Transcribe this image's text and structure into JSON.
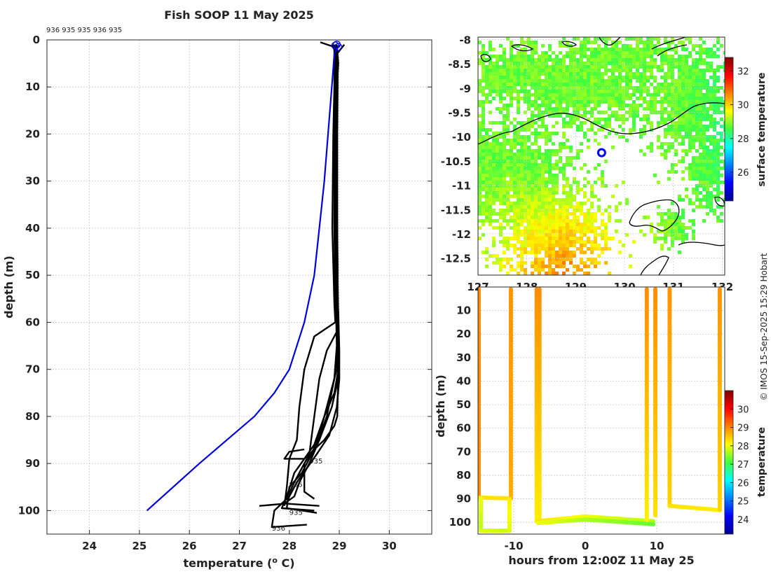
{
  "chart_data": [
    {
      "type": "line",
      "title": "Fish SOOP 11 May 2025",
      "xlabel": "temperature (",
      "xlabel_sup": "o",
      "xlabel_suffix": " C)",
      "ylabel": "depth (m)",
      "xlim": [
        23.15,
        30.85
      ],
      "ylim": [
        105,
        0
      ],
      "x_ticks": [
        24,
        25,
        26,
        27,
        28,
        29,
        30
      ],
      "y_ticks": [
        0,
        10,
        20,
        30,
        40,
        50,
        60,
        70,
        80,
        90,
        100
      ],
      "top_labels": "936 935 935 936 935",
      "depth_annotations": [
        {
          "text": "935",
          "temperature": 28.4,
          "depth": 89.5
        },
        {
          "text": "935",
          "temperature": 28.0,
          "depth": 94.5
        },
        {
          "text": "935",
          "temperature": 28.0,
          "depth": 100.5
        },
        {
          "text": "936",
          "temperature": 27.65,
          "depth": 103.8
        }
      ],
      "climatology": {
        "name": "climatology",
        "color": "#0000dd",
        "points": [
          [
            29.0,
            1
          ],
          [
            28.9,
            3
          ],
          [
            28.85,
            10
          ],
          [
            28.7,
            30
          ],
          [
            28.6,
            40
          ],
          [
            28.5,
            50
          ],
          [
            28.3,
            60
          ],
          [
            28.0,
            70
          ],
          [
            27.7,
            75
          ],
          [
            27.3,
            80
          ],
          [
            26.2,
            90
          ],
          [
            25.15,
            100
          ]
        ]
      },
      "profiles": [
        {
          "name": "profile-1",
          "points": [
            [
              28.62,
              0.5
            ],
            [
              28.9,
              1.5
            ],
            [
              28.9,
              10
            ],
            [
              28.88,
              20
            ],
            [
              28.86,
              40
            ],
            [
              28.9,
              56
            ],
            [
              28.92,
              60
            ],
            [
              28.5,
              63
            ],
            [
              28.3,
              70
            ],
            [
              28.2,
              78
            ],
            [
              28.15,
              85
            ],
            [
              28.0,
              89
            ],
            [
              27.95,
              95
            ],
            [
              27.9,
              99
            ]
          ]
        },
        {
          "name": "profile-2",
          "points": [
            [
              29.1,
              1
            ],
            [
              28.95,
              3
            ],
            [
              28.92,
              10
            ],
            [
              28.9,
              20
            ],
            [
              28.9,
              40
            ],
            [
              28.92,
              56
            ],
            [
              28.95,
              62
            ],
            [
              28.75,
              66
            ],
            [
              28.6,
              72
            ],
            [
              28.5,
              80
            ],
            [
              28.4,
              88
            ],
            [
              28.3,
              90
            ],
            [
              28.3,
              96
            ],
            [
              28.5,
              97.5
            ]
          ]
        },
        {
          "name": "profile-3",
          "points": [
            [
              28.85,
              1
            ],
            [
              28.95,
              3
            ],
            [
              28.95,
              10
            ],
            [
              28.93,
              30
            ],
            [
              28.95,
              50
            ],
            [
              28.97,
              60
            ],
            [
              28.98,
              70
            ],
            [
              28.9,
              75
            ],
            [
              28.7,
              80
            ],
            [
              28.5,
              86
            ],
            [
              28.3,
              89
            ],
            [
              28.1,
              92
            ],
            [
              27.98,
              96
            ],
            [
              27.85,
              99.5
            ],
            [
              28.5,
              100
            ]
          ]
        },
        {
          "name": "profile-4",
          "points": [
            [
              28.95,
              1
            ],
            [
              28.98,
              5
            ],
            [
              28.95,
              10
            ],
            [
              28.95,
              30
            ],
            [
              28.97,
              55
            ],
            [
              28.98,
              65
            ],
            [
              28.98,
              72
            ],
            [
              28.85,
              78
            ],
            [
              28.6,
              85
            ],
            [
              28.4,
              90
            ],
            [
              28.2,
              94
            ],
            [
              28.1,
              97
            ],
            [
              27.9,
              98.5
            ],
            [
              28.6,
              99
            ]
          ]
        },
        {
          "name": "profile-5",
          "points": [
            [
              28.9,
              1
            ],
            [
              28.92,
              5
            ],
            [
              28.92,
              20
            ],
            [
              28.92,
              40
            ],
            [
              28.93,
              55
            ],
            [
              28.95,
              65
            ],
            [
              28.9,
              72
            ],
            [
              28.75,
              80
            ],
            [
              28.55,
              86
            ],
            [
              28.3,
              90
            ],
            [
              28.1,
              94
            ],
            [
              27.95,
              97.5
            ],
            [
              27.7,
              100
            ],
            [
              27.65,
              103.5
            ],
            [
              28.35,
              103
            ]
          ]
        },
        {
          "name": "profile-6",
          "points": [
            [
              28.88,
              1
            ],
            [
              28.95,
              5
            ],
            [
              28.94,
              20
            ],
            [
              28.94,
              40
            ],
            [
              28.95,
              52
            ],
            [
              28.96,
              62
            ],
            [
              28.95,
              70
            ],
            [
              28.8,
              76
            ],
            [
              28.65,
              82
            ],
            [
              28.45,
              88
            ],
            [
              28.25,
              92
            ],
            [
              28.0,
              95
            ],
            [
              27.95,
              99.5
            ],
            [
              28.55,
              100.5
            ]
          ]
        },
        {
          "name": "profile-7",
          "points": [
            [
              28.92,
              1
            ],
            [
              28.96,
              5
            ],
            [
              28.93,
              20
            ],
            [
              28.93,
              40
            ],
            [
              28.95,
              50
            ],
            [
              28.98,
              58
            ],
            [
              29.0,
              66
            ],
            [
              29.0,
              72
            ],
            [
              28.95,
              78
            ],
            [
              28.8,
              84
            ],
            [
              28.55,
              88
            ],
            [
              28.35,
              91
            ],
            [
              28.15,
              94
            ],
            [
              28.0,
              97
            ],
            [
              27.95,
              98.5
            ],
            [
              27.4,
              99
            ]
          ]
        },
        {
          "name": "profile-8",
          "points": [
            [
              28.9,
              1.5
            ],
            [
              28.97,
              5
            ],
            [
              28.96,
              20
            ],
            [
              28.96,
              40
            ],
            [
              28.97,
              55
            ],
            [
              28.98,
              63
            ],
            [
              28.98,
              70
            ],
            [
              28.96,
              80
            ],
            [
              28.9,
              82
            ],
            [
              28.7,
              85
            ],
            [
              28.5,
              87
            ],
            [
              28.3,
              89
            ],
            [
              27.9,
              89
            ],
            [
              28.0,
              87.5
            ],
            [
              28.3,
              87
            ]
          ]
        }
      ]
    },
    {
      "type": "heatmap",
      "subtype": "map",
      "x_ticks": [
        127,
        128,
        129,
        130,
        131,
        132
      ],
      "x_tick_labels_shown": [
        "127",
        "128",
        "129",
        "130",
        "131",
        "132"
      ],
      "xlim": [
        127,
        132.05
      ],
      "y_ticks": [
        -8,
        -8.5,
        -9,
        -9.5,
        -10,
        -10.5,
        -11,
        -11.5,
        -12,
        -12.5
      ],
      "y_tick_labels": [
        "-8",
        "-8.5",
        "-9",
        "-9.5",
        "-10",
        "-10.5",
        "-11",
        "-11.5",
        "-12",
        "-12.5"
      ],
      "ylim": [
        -12.85,
        -7.95
      ],
      "colorbar_label": "surface temperature",
      "colorbar_ticks": [
        26,
        28,
        30,
        32
      ],
      "colorbar_range": [
        24.3,
        32.8
      ],
      "vessel_position": {
        "lon": 129.53,
        "lat": -10.33
      }
    },
    {
      "type": "scatter",
      "xlabel": "hours from 12:00Z 11 May 25",
      "ylabel": "depth (m)",
      "xlim": [
        -15,
        19.5
      ],
      "ylim": [
        105,
        0
      ],
      "x_ticks": [
        -10,
        0,
        10
      ],
      "y_ticks": [
        10,
        20,
        30,
        40,
        50,
        60,
        70,
        80,
        90,
        100
      ],
      "colorbar_label": "temperature",
      "colorbar_ticks": [
        24,
        25,
        26,
        27,
        28,
        29,
        30
      ],
      "colorbar_range": [
        23.2,
        31.0
      ],
      "segments": [
        {
          "x": [
            -14.9,
            -14.9
          ],
          "depth": [
            1,
            89.5
          ],
          "temp": [
            28.95,
            28.95
          ]
        },
        {
          "x": [
            -14.9,
            -10.5
          ],
          "depth": [
            89.5,
            89.8
          ],
          "temp": [
            28.3,
            28.3
          ]
        },
        {
          "x": [
            -10.4,
            -10.4
          ],
          "depth": [
            1,
            89.8
          ],
          "temp": [
            28.9,
            28.7
          ]
        },
        {
          "x": [
            -14.6,
            -14.6
          ],
          "depth": [
            90,
            103.5
          ],
          "temp": [
            28.0,
            27.7
          ]
        },
        {
          "x": [
            -14.6,
            -10.6
          ],
          "depth": [
            103.5,
            103.5
          ],
          "temp": [
            27.9,
            27.8
          ]
        },
        {
          "x": [
            -10.6,
            -10.6
          ],
          "depth": [
            103.5,
            90
          ],
          "temp": [
            27.9,
            28.2
          ]
        },
        {
          "x": [
            -6.8,
            -6.8
          ],
          "depth": [
            1,
            99.5
          ],
          "temp": [
            28.95,
            28.2
          ]
        },
        {
          "x": [
            -6.4,
            -6.4
          ],
          "depth": [
            1,
            99.5
          ],
          "temp": [
            28.95,
            28.2
          ]
        },
        {
          "x": [
            -6.6,
            0,
            9.5
          ],
          "depth": [
            99.5,
            97.5,
            99.5
          ],
          "temp": [
            28.3,
            28.6,
            27.7
          ]
        },
        {
          "x": [
            -6.6,
            0,
            9.5
          ],
          "depth": [
            100.3,
            98.8,
            100.8
          ],
          "temp": [
            28.0,
            28.2,
            27.3
          ]
        },
        {
          "x": [
            8.6,
            8.6
          ],
          "depth": [
            1,
            99
          ],
          "temp": [
            28.95,
            28.2
          ]
        },
        {
          "x": [
            9.8,
            9.8
          ],
          "depth": [
            1,
            97
          ],
          "temp": [
            28.95,
            28.3
          ]
        },
        {
          "x": [
            11.8,
            11.8
          ],
          "depth": [
            1,
            93
          ],
          "temp": [
            28.9,
            28.4
          ]
        },
        {
          "x": [
            11.8,
            18.8
          ],
          "depth": [
            93,
            94.8
          ],
          "temp": [
            28.3,
            28.2
          ]
        },
        {
          "x": [
            18.8,
            18.8
          ],
          "depth": [
            1,
            94.8
          ],
          "temp": [
            28.9,
            28.4
          ]
        }
      ]
    }
  ],
  "credit": "© IMOS 15-Sep-2025 15:29 Hobart"
}
